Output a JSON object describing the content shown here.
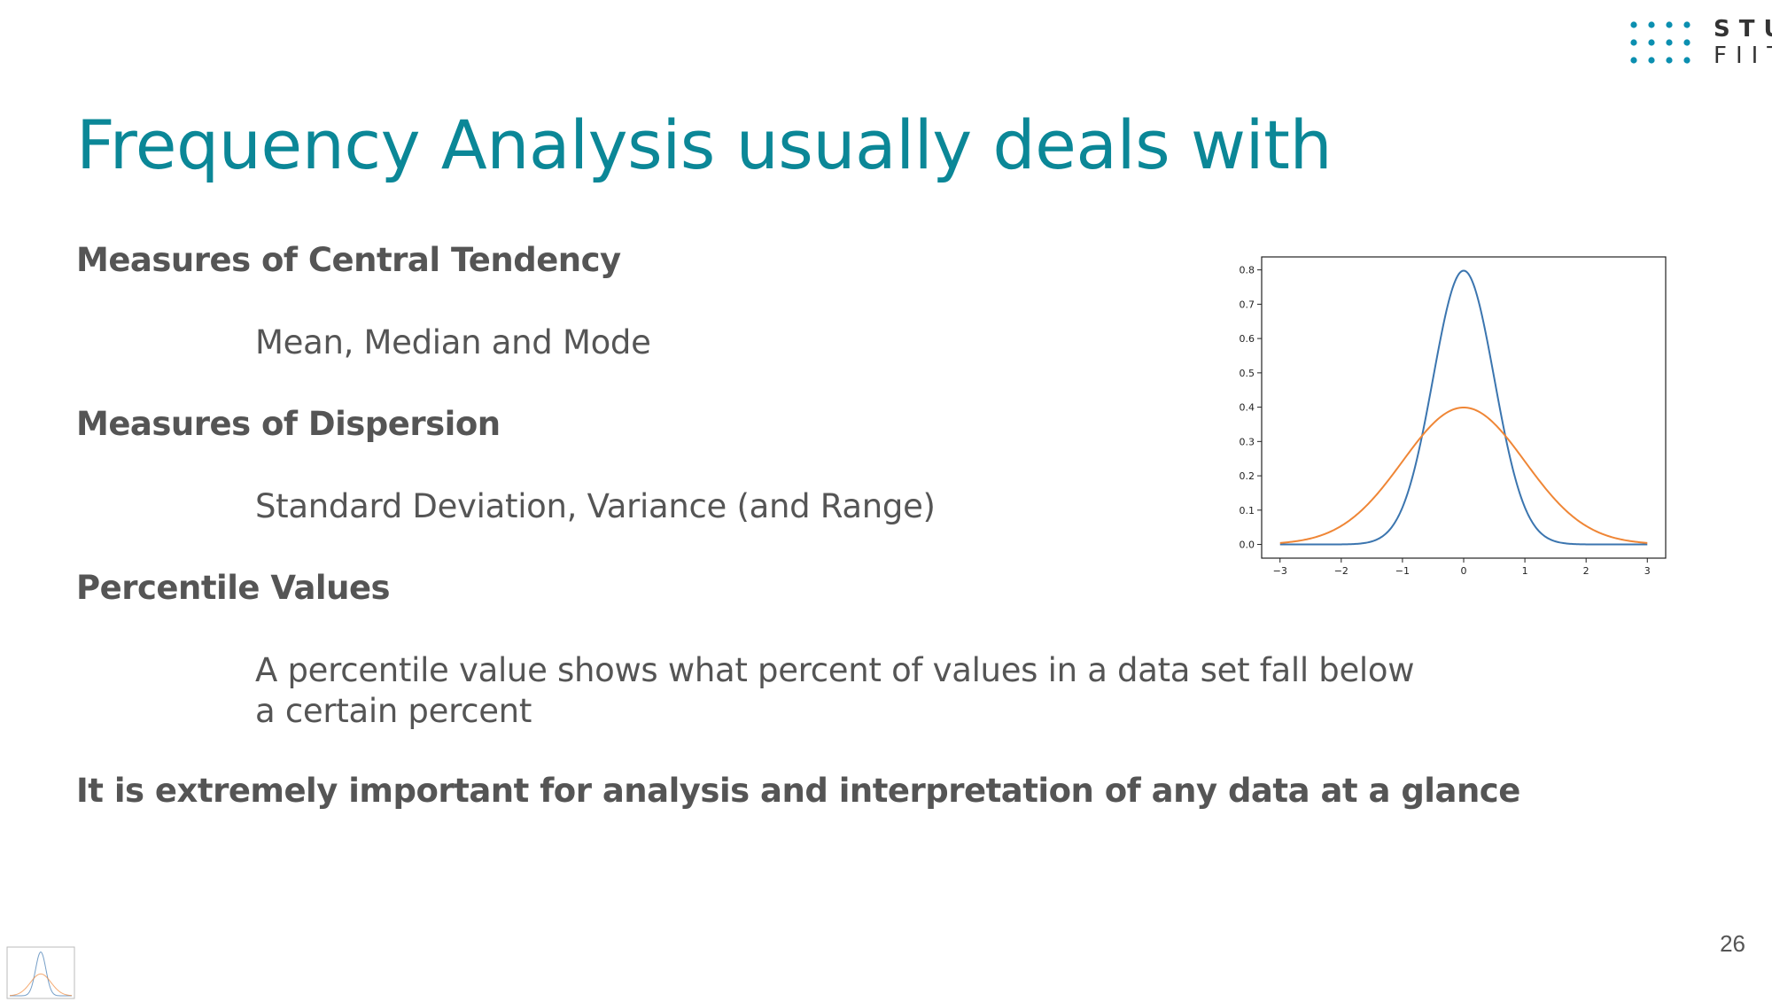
{
  "logo": {
    "line1": "STU",
    "line2": "FIIT",
    "color": "#0b8fb0"
  },
  "slide": {
    "title": "Frequency Analysis usually deals with",
    "items": [
      {
        "heading": "Measures of Central Tendency",
        "detail": [
          "Mean, Median and Mode"
        ]
      },
      {
        "heading": "Measures of Dispersion",
        "detail": [
          "Standard Deviation, Variance (and Range)"
        ]
      },
      {
        "heading": "Percentile Values",
        "detail": [
          "A percentile value shows what percent of values in a data set fall below",
          "a certain percent"
        ]
      }
    ],
    "conclusion": "It is extremely important for analysis and interpretation of any data at a glance",
    "page_number": "26"
  },
  "chart_data": {
    "type": "line",
    "xlim": [
      -3,
      3
    ],
    "ylim": [
      0,
      0.8
    ],
    "xticks": [
      "−3",
      "−2",
      "−1",
      "0",
      "1",
      "2",
      "3"
    ],
    "yticks": [
      "0.0",
      "0.1",
      "0.2",
      "0.3",
      "0.4",
      "0.5",
      "0.6",
      "0.7",
      "0.8"
    ],
    "grid": false,
    "series": [
      {
        "color": "#3b75af",
        "mean": 0,
        "sd": 0.5,
        "x_range": [
          -3,
          3
        ]
      },
      {
        "color": "#ef8636",
        "mean": 0,
        "sd": 1.0,
        "x_range": [
          -3,
          3
        ]
      }
    ]
  }
}
